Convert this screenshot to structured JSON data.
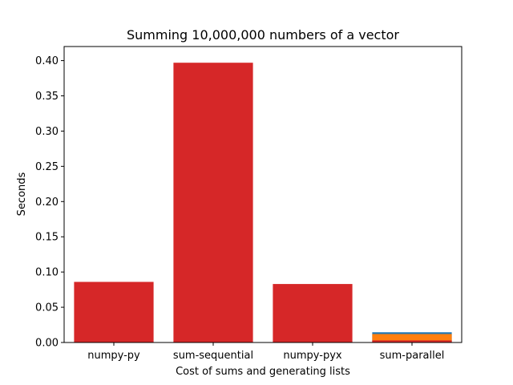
{
  "chart_data": {
    "type": "bar",
    "title": "Summing 10,000,000 numbers of a vector",
    "xlabel": "Cost of sums and generating lists",
    "ylabel": "Seconds",
    "categories": [
      "numpy-py",
      "sum-sequential",
      "numpy-pyx",
      "sum-parallel"
    ],
    "ylim": [
      0,
      0.42
    ],
    "yticks": [
      "0.00",
      "0.05",
      "0.10",
      "0.15",
      "0.20",
      "0.25",
      "0.30",
      "0.35",
      "0.40"
    ],
    "grid": false,
    "series": [
      {
        "values": [
          0,
          0,
          0,
          0.0145
        ],
        "color": "#1f77b4"
      },
      {
        "values": [
          0,
          0,
          0,
          0.012
        ],
        "color": "#ff7f0e"
      },
      {
        "values": [
          0.086,
          0.397,
          0.083,
          0.003
        ],
        "color": "#d62728"
      }
    ]
  }
}
